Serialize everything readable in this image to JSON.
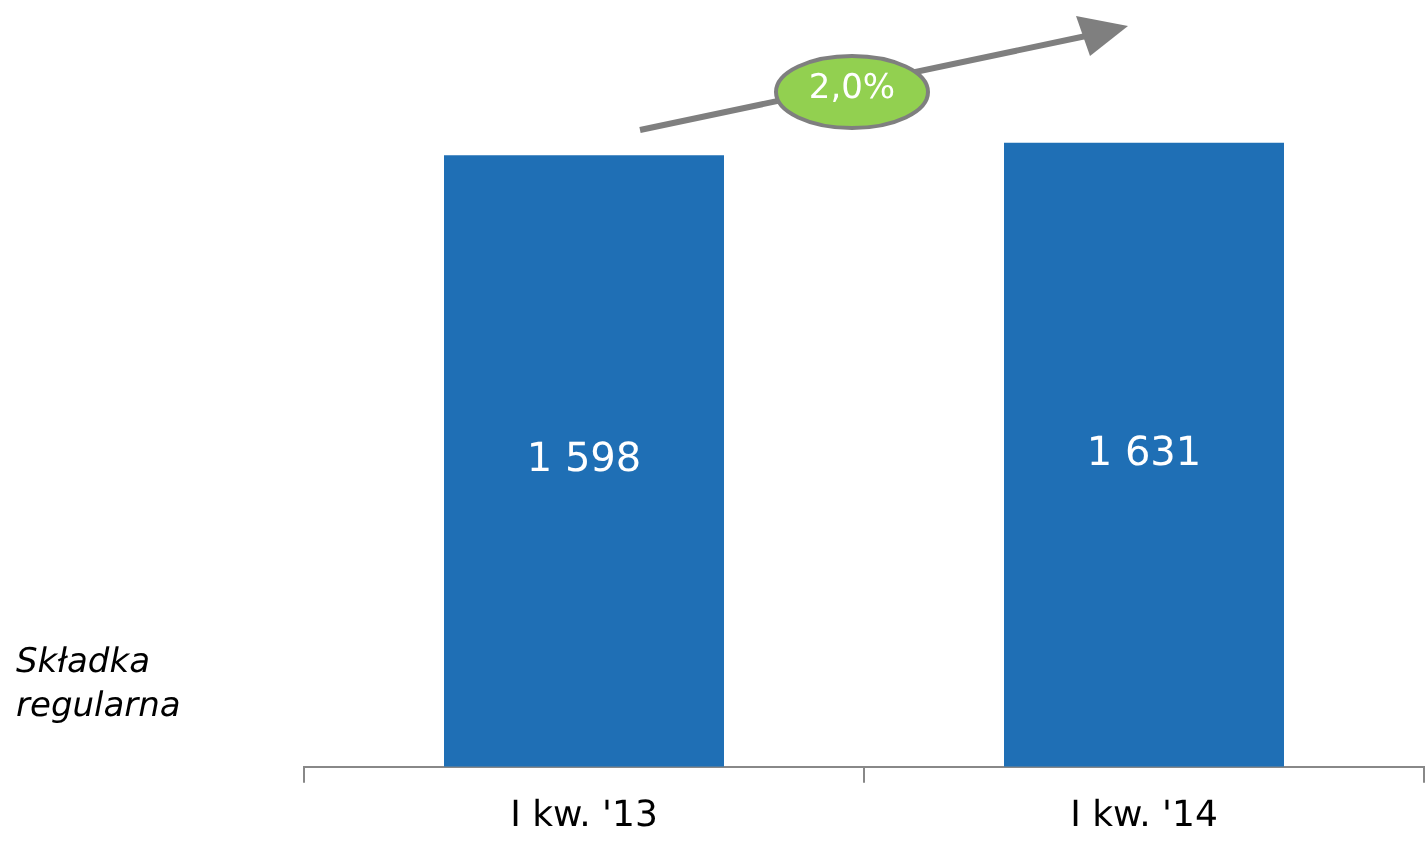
{
  "chart_data": {
    "type": "bar",
    "categories": [
      "I kw. '13",
      "I kw. '14"
    ],
    "values": [
      1598,
      1631
    ],
    "color": "#1f6fb5",
    "data_labels": true,
    "grid": false,
    "legend": false,
    "tick_labels": "x",
    "ylabel": "Składka regularna",
    "annotations": [
      "2,0%"
    ]
  }
}
